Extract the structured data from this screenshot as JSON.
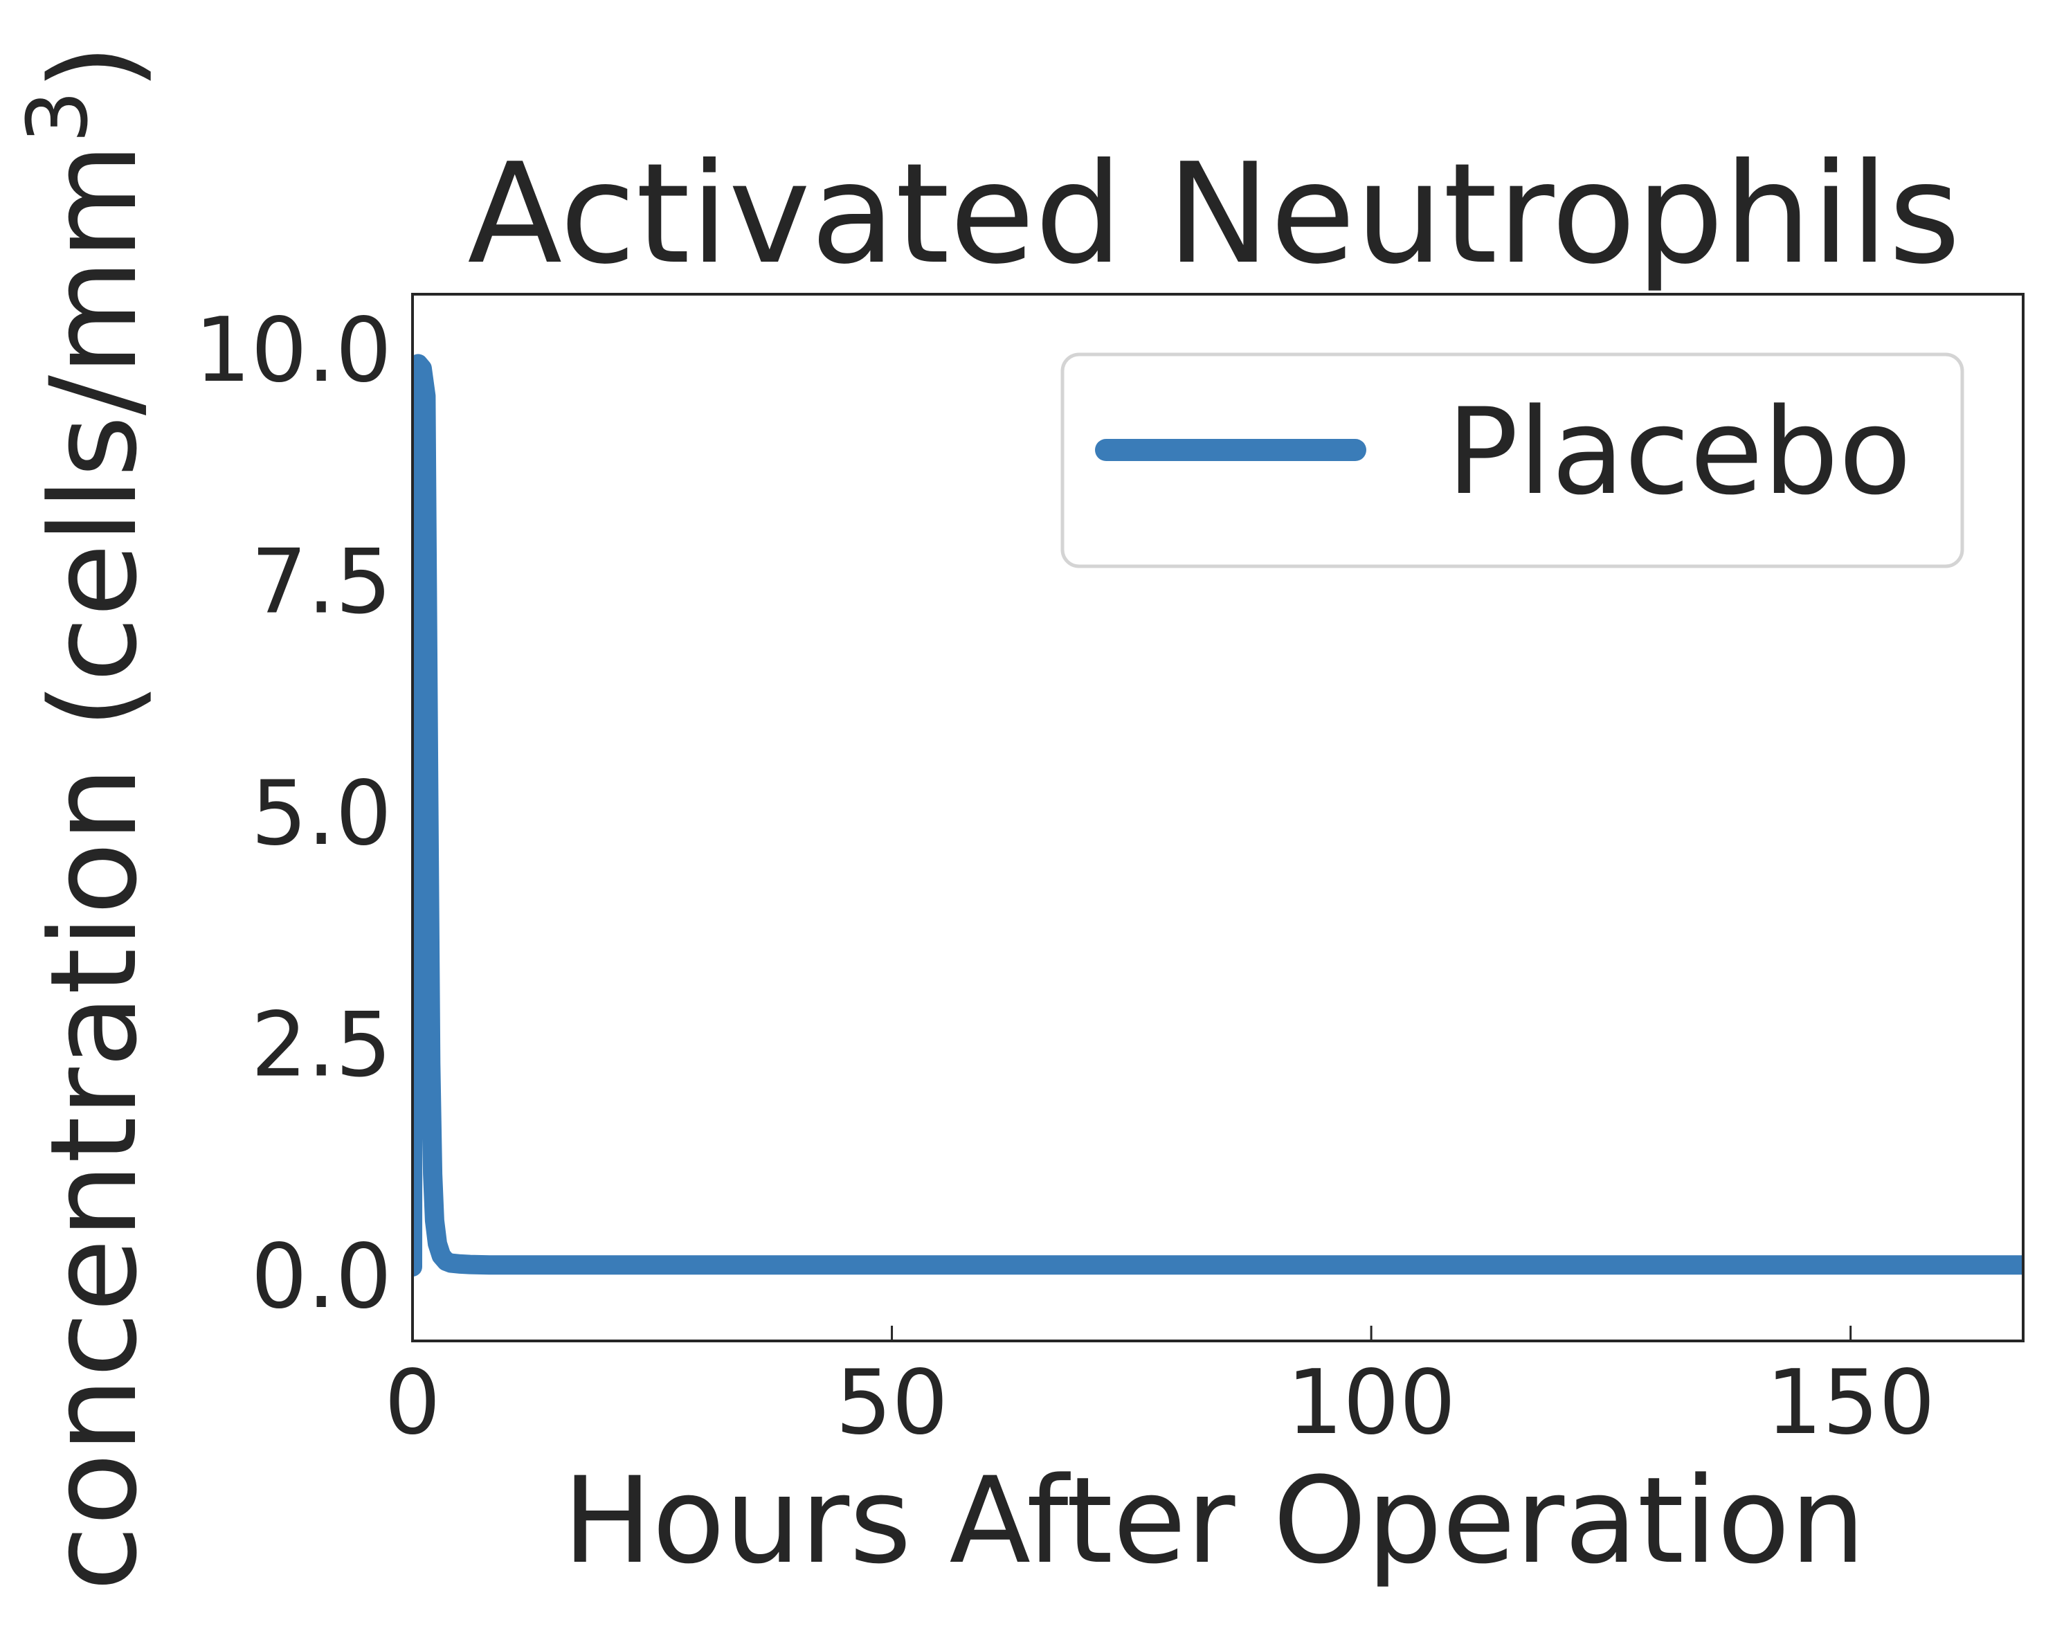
{
  "chart_data": {
    "type": "line",
    "title": "Activated Neutrophils",
    "xlabel": "Hours After Operation",
    "ylabel_main": "concentration (cells/mm",
    "ylabel_sup": "3",
    "ylabel_close": ")",
    "xlim": [
      0,
      168
    ],
    "ylim": [
      -0.8,
      10.5
    ],
    "xticks": [
      0,
      50,
      100,
      150
    ],
    "yticks": [
      0.0,
      2.5,
      5.0,
      7.5,
      10.0
    ],
    "xtick_labels": [
      "0",
      "50",
      "100",
      "150"
    ],
    "ytick_labels": [
      "0.0",
      "2.5",
      "5.0",
      "7.5",
      "10.0"
    ],
    "grid": false,
    "legend_position": "upper right",
    "colors": {
      "placebo": "#3a7cb8",
      "axes": "#262626",
      "legend_border": "#d4d4d4"
    },
    "series": [
      {
        "name": "Placebo",
        "x": [
          0,
          0.1,
          0.3,
          0.6,
          1,
          1.4,
          1.7,
          1.9,
          2.1,
          2.3,
          2.6,
          3,
          3.5,
          4,
          5,
          6,
          8,
          10,
          20,
          40,
          60,
          80,
          100,
          120,
          140,
          160,
          168
        ],
        "y": [
          0,
          9.6,
          9.7,
          9.75,
          9.7,
          9.4,
          5.0,
          2.2,
          1.0,
          0.5,
          0.25,
          0.12,
          0.06,
          0.04,
          0.03,
          0.025,
          0.02,
          0.02,
          0.02,
          0.02,
          0.02,
          0.02,
          0.02,
          0.02,
          0.02,
          0.02,
          0.02
        ]
      }
    ]
  }
}
